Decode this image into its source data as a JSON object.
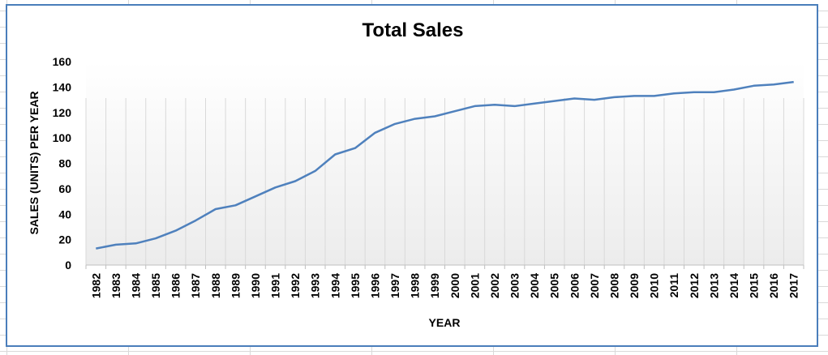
{
  "chart_data": {
    "type": "line",
    "title": "Total Sales",
    "xlabel": "YEAR",
    "ylabel": "SALES (UNITS) PER YEAR",
    "ylim": [
      0,
      160
    ],
    "yticks": [
      0,
      20,
      40,
      60,
      80,
      100,
      120,
      140,
      160
    ],
    "grid": "vertical-gridlines",
    "categories": [
      "1982",
      "1983",
      "1984",
      "1985",
      "1986",
      "1987",
      "1988",
      "1989",
      "1990",
      "1991",
      "1992",
      "1993",
      "1994",
      "1995",
      "1996",
      "1997",
      "1998",
      "1999",
      "2000",
      "2001",
      "2002",
      "2003",
      "2004",
      "2005",
      "2006",
      "2007",
      "2008",
      "2009",
      "2010",
      "2011",
      "2012",
      "2013",
      "2014",
      "2015",
      "2016",
      "2017"
    ],
    "series": [
      {
        "name": "Total Sales",
        "color": "#4f81bd",
        "values": [
          13,
          16,
          17,
          21,
          27,
          35,
          44,
          47,
          54,
          61,
          66,
          74,
          87,
          92,
          104,
          111,
          115,
          117,
          121,
          125,
          126,
          125,
          127,
          129,
          131,
          130,
          132,
          133,
          133,
          135,
          136,
          136,
          138,
          141,
          142,
          144
        ]
      }
    ]
  }
}
